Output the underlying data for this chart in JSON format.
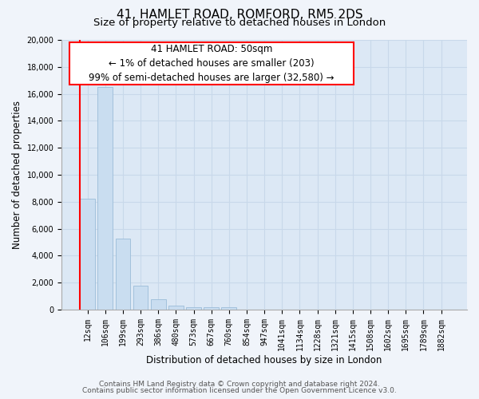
{
  "title": "41, HAMLET ROAD, ROMFORD, RM5 2DS",
  "subtitle": "Size of property relative to detached houses in London",
  "xlabel": "Distribution of detached houses by size in London",
  "ylabel": "Number of detached properties",
  "bar_labels": [
    "12sqm",
    "106sqm",
    "199sqm",
    "293sqm",
    "386sqm",
    "480sqm",
    "573sqm",
    "667sqm",
    "760sqm",
    "854sqm",
    "947sqm",
    "1041sqm",
    "1134sqm",
    "1228sqm",
    "1321sqm",
    "1415sqm",
    "1508sqm",
    "1602sqm",
    "1695sqm",
    "1789sqm",
    "1882sqm"
  ],
  "bar_values": [
    8200,
    16500,
    5300,
    1800,
    800,
    300,
    200,
    200,
    200,
    0,
    0,
    0,
    0,
    0,
    0,
    0,
    0,
    0,
    0,
    0,
    0
  ],
  "bar_color": "#c9ddf0",
  "bar_edge_color": "#9bbcd8",
  "red_line_bar_index": 0,
  "red_line_color": "red",
  "annotation_line1": "41 HAMLET ROAD: 50sqm",
  "annotation_line2": "← 1% of detached houses are smaller (203)",
  "annotation_line3": "99% of semi-detached houses are larger (32,580) →",
  "ylim": [
    0,
    20000
  ],
  "yticks": [
    0,
    2000,
    4000,
    6000,
    8000,
    10000,
    12000,
    14000,
    16000,
    18000,
    20000
  ],
  "footer_line1": "Contains HM Land Registry data © Crown copyright and database right 2024.",
  "footer_line2": "Contains public sector information licensed under the Open Government Licence v3.0.",
  "bg_color": "#f0f4fa",
  "plot_bg_color": "#dce8f5",
  "grid_color": "#c8d8ea",
  "title_fontsize": 11,
  "subtitle_fontsize": 9.5,
  "axis_label_fontsize": 8.5,
  "tick_fontsize": 7,
  "footer_fontsize": 6.5,
  "annotation_fontsize": 8.5
}
